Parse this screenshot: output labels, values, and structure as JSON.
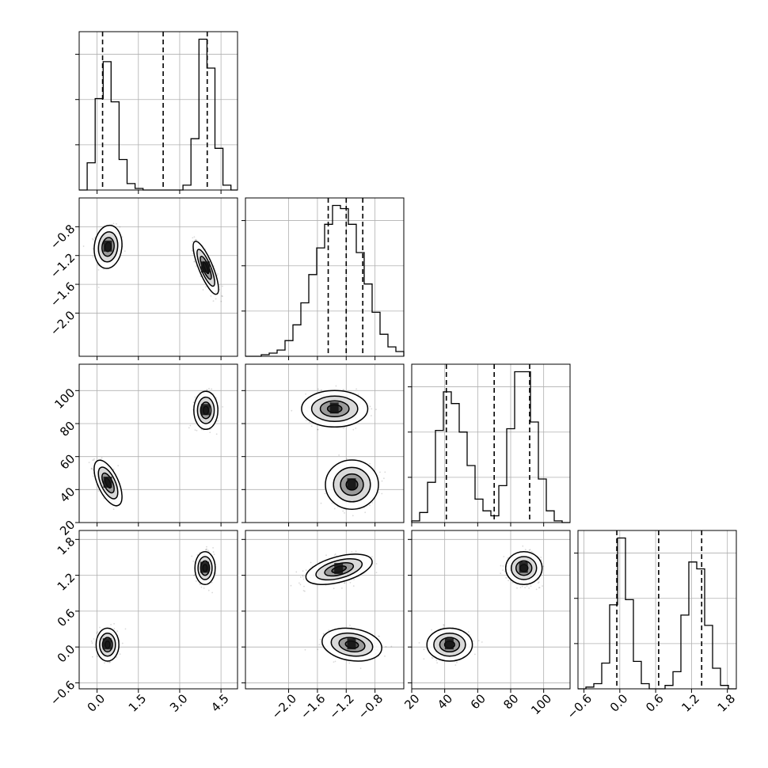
{
  "chart_data": {
    "type": "corner",
    "parameters": [
      {
        "range": [
          -0.65,
          5.1
        ],
        "ticks": [
          0.0,
          1.5,
          3.0,
          4.5
        ],
        "tick_labels": [
          "0.0",
          "1.5",
          "3.0",
          "4.5"
        ],
        "quantiles": [
          0.2,
          2.4,
          4.0
        ],
        "histogram": {
          "edges": [
            -0.65,
            -0.36,
            -0.07,
            0.22,
            0.51,
            0.8,
            1.09,
            1.38,
            1.67,
            1.96,
            2.25,
            2.54,
            2.83,
            3.12,
            3.41,
            3.7,
            3.99,
            4.28,
            4.57,
            4.86,
            5.1
          ],
          "counts": [
            0.0,
            0.17,
            0.57,
            0.8,
            0.55,
            0.19,
            0.04,
            0.01,
            0.0,
            0.0,
            0.0,
            0.0,
            0.0,
            0.03,
            0.32,
            0.94,
            0.76,
            0.26,
            0.03,
            0.0
          ]
        }
      },
      {
        "range": [
          -2.6,
          -0.4
        ],
        "ticks": [
          -2.0,
          -1.6,
          -1.2,
          -0.8
        ],
        "tick_labels": [
          "−2.0",
          "−1.6",
          "−1.2",
          "−0.8"
        ],
        "quantiles": [
          -1.45,
          -1.2,
          -0.97
        ],
        "histogram": {
          "edges": [
            -2.6,
            -2.49,
            -2.38,
            -2.27,
            -2.16,
            -2.05,
            -1.94,
            -1.83,
            -1.72,
            -1.61,
            -1.5,
            -1.39,
            -1.28,
            -1.17,
            -1.06,
            -0.95,
            -0.84,
            -0.73,
            -0.62,
            -0.51,
            -0.4
          ],
          "counts": [
            0.0,
            0.0,
            0.01,
            0.02,
            0.04,
            0.1,
            0.2,
            0.34,
            0.52,
            0.69,
            0.84,
            0.96,
            0.94,
            0.84,
            0.66,
            0.46,
            0.28,
            0.14,
            0.06,
            0.03
          ]
        }
      },
      {
        "range": [
          20,
          116
        ],
        "ticks": [
          20,
          40,
          60,
          80,
          100
        ],
        "tick_labels": [
          "20",
          "40",
          "60",
          "80",
          "100"
        ],
        "quantiles": [
          41,
          70,
          91.5
        ],
        "histogram": {
          "edges": [
            20,
            24.8,
            29.6,
            34.4,
            39.2,
            44,
            48.8,
            53.6,
            58.4,
            63.2,
            68,
            72.8,
            77.6,
            82.4,
            87.2,
            92,
            96.8,
            101.6,
            106.4,
            111.2,
            116
          ],
          "counts": [
            0.01,
            0.06,
            0.24,
            0.55,
            0.78,
            0.71,
            0.54,
            0.34,
            0.14,
            0.07,
            0.04,
            0.22,
            0.56,
            0.9,
            0.9,
            0.6,
            0.26,
            0.07,
            0.01,
            0.0
          ]
        }
      },
      {
        "range": [
          -0.7,
          1.95
        ],
        "ticks": [
          -0.6,
          0.0,
          0.6,
          1.2,
          1.8
        ],
        "tick_labels": [
          "−0.6",
          "0.0",
          "0.6",
          "1.2",
          "1.8"
        ],
        "quantiles": [
          -0.05,
          0.65,
          1.37
        ],
        "histogram": {
          "edges": [
            -0.7,
            -0.5675,
            -0.435,
            -0.3025,
            -0.17,
            -0.0375,
            0.095,
            0.2275,
            0.36,
            0.4925,
            0.625,
            0.7575,
            0.89,
            1.0225,
            1.155,
            1.2875,
            1.42,
            1.5525,
            1.685,
            1.8175,
            1.95
          ],
          "counts": [
            0.0,
            0.01,
            0.03,
            0.15,
            0.49,
            0.88,
            0.52,
            0.16,
            0.03,
            0.0,
            0.0,
            0.02,
            0.1,
            0.43,
            0.74,
            0.7,
            0.37,
            0.12,
            0.02,
            0.0
          ]
        }
      }
    ],
    "panels_2d": [
      {
        "row": 1,
        "col": 0,
        "clusters": [
          {
            "cx": 0.4,
            "cy": -1.08,
            "sx": 0.22,
            "sy": 0.13,
            "rho": 0.1,
            "n": 380
          },
          {
            "cx": 3.95,
            "cy": -1.37,
            "sx": 0.2,
            "sy": 0.16,
            "rho": -0.8,
            "n": 380
          }
        ]
      },
      {
        "row": 2,
        "col": 0,
        "clusters": [
          {
            "cx": 0.4,
            "cy": 44,
            "sx": 0.22,
            "sy": 6,
            "rho": -0.6,
            "n": 380
          },
          {
            "cx": 3.95,
            "cy": 88,
            "sx": 0.19,
            "sy": 5,
            "rho": 0.0,
            "n": 380
          }
        ]
      },
      {
        "row": 2,
        "col": 1,
        "clusters": [
          {
            "cx": -1.36,
            "cy": 89,
            "sx": 0.2,
            "sy": 4.8,
            "rho": 0.0,
            "n": 380
          },
          {
            "cx": -1.12,
            "cy": 43,
            "sx": 0.16,
            "sy": 6.5,
            "rho": 0.0,
            "n": 380
          }
        ]
      },
      {
        "row": 3,
        "col": 0,
        "clusters": [
          {
            "cx": 0.38,
            "cy": 0.04,
            "sx": 0.18,
            "sy": 0.12,
            "rho": 0.0,
            "n": 380
          },
          {
            "cx": 3.92,
            "cy": 1.32,
            "sx": 0.16,
            "sy": 0.12,
            "rho": 0.0,
            "n": 380
          }
        ]
      },
      {
        "row": 3,
        "col": 1,
        "clusters": [
          {
            "cx": -1.3,
            "cy": 1.3,
            "sx": 0.2,
            "sy": 0.11,
            "rho": 0.5,
            "n": 380
          },
          {
            "cx": -1.12,
            "cy": 0.04,
            "sx": 0.18,
            "sy": 0.12,
            "rho": -0.2,
            "n": 380
          }
        ]
      },
      {
        "row": 3,
        "col": 2,
        "clusters": [
          {
            "cx": 43,
            "cy": 0.04,
            "sx": 6,
            "sy": 0.12,
            "rho": 0.0,
            "n": 380
          },
          {
            "cx": 88,
            "cy": 1.32,
            "sx": 4.8,
            "sy": 0.12,
            "rho": 0.0,
            "n": 380
          }
        ]
      }
    ]
  }
}
